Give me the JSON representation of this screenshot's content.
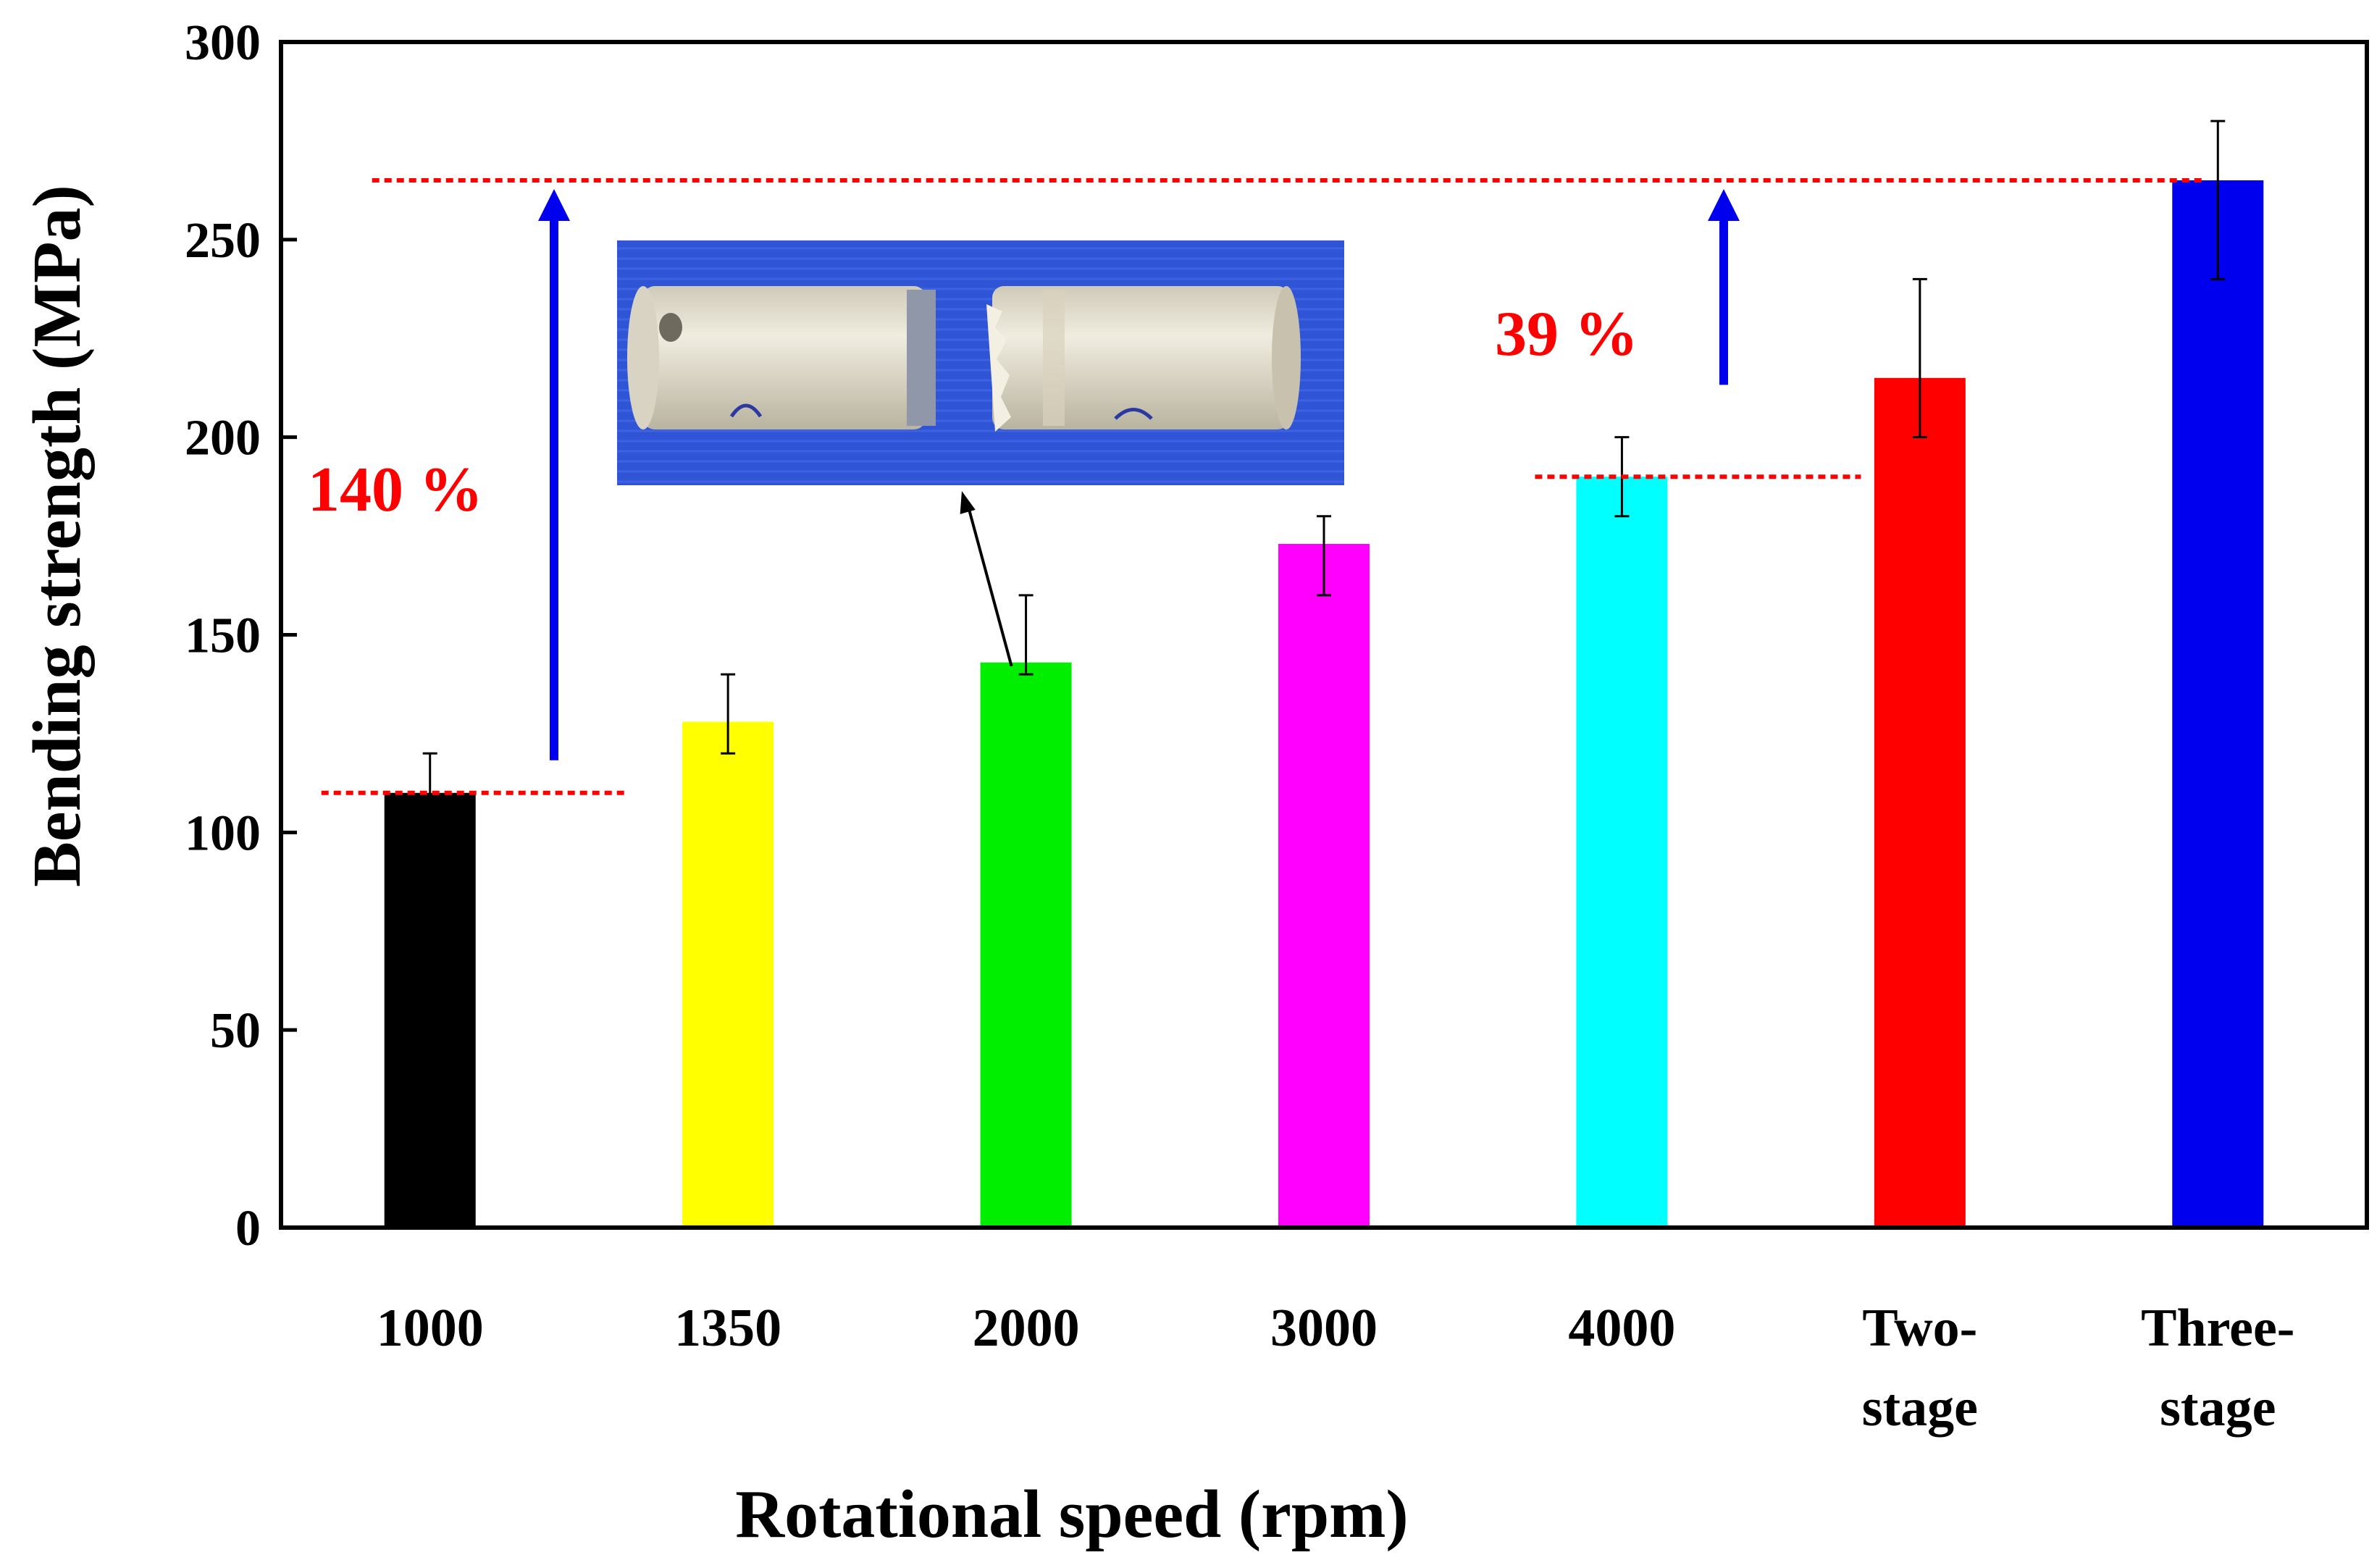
{
  "chart_data": {
    "type": "bar",
    "xlabel": "Rotational speed (rpm)",
    "ylabel": "Bending strength (MPa)",
    "ylim": [
      0,
      300
    ],
    "yticks": [
      0,
      50,
      100,
      150,
      200,
      250,
      300
    ],
    "categories": [
      {
        "lines": [
          "1000"
        ]
      },
      {
        "lines": [
          "1350"
        ]
      },
      {
        "lines": [
          "2000"
        ]
      },
      {
        "lines": [
          "3000"
        ]
      },
      {
        "lines": [
          "4000"
        ]
      },
      {
        "lines": [
          "Two-",
          "stage"
        ]
      },
      {
        "lines": [
          "Three-",
          "stage"
        ]
      }
    ],
    "values": [
      110,
      128,
      143,
      173,
      190,
      215,
      265
    ],
    "error_low": [
      100,
      120,
      140,
      160,
      180,
      200,
      240
    ],
    "error_high": [
      120,
      140,
      160,
      180,
      200,
      240,
      280
    ],
    "colors": [
      "#000000",
      "#ffff00",
      "#00ee00",
      "#ff00ff",
      "#00ffff",
      "#ff0000",
      "#0000ee"
    ],
    "annotations": {
      "increase_1": {
        "text": "140 %",
        "from_value": 110,
        "to_value": 265,
        "color": "#ff0000"
      },
      "increase_2": {
        "text": "39 %",
        "from_value": 190,
        "to_value": 265,
        "color": "#ff0000"
      },
      "arrow_color": "#0000ee",
      "reference_line_color": "#ff0000"
    },
    "inset": {
      "description_icon": "fractured-specimen-photo",
      "points_to_category": "2000",
      "background": "#2f55d6"
    }
  }
}
